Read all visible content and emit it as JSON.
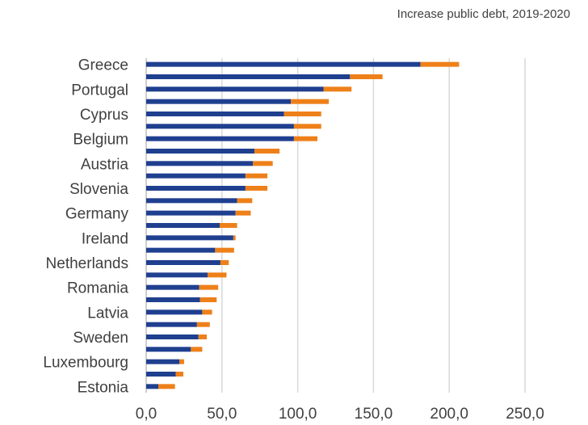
{
  "chart_data": {
    "type": "bar",
    "orientation": "horizontal",
    "stacked": true,
    "title": "Increase public debt, 2019-2020",
    "xlabel": "",
    "ylabel": "",
    "xlim": [
      0,
      250
    ],
    "x_ticks": [
      "0,0",
      "50,0",
      "100,0",
      "150,0",
      "200,0",
      "250,0"
    ],
    "grid": "vertical",
    "legend": "none",
    "categories": [
      "Greece",
      "",
      "Portugal",
      "",
      "Cyprus",
      "",
      "Belgium",
      "",
      "Austria",
      "",
      "Slovenia",
      "",
      "Germany",
      "",
      "Ireland",
      "",
      "Netherlands",
      "",
      "Romania",
      "",
      "Latvia",
      "",
      "Sweden",
      "",
      "Luxembourg",
      "",
      "Estonia"
    ],
    "series": [
      {
        "color": "#1f3f8f",
        "values": [
          181,
          134.5,
          117,
          95.5,
          91,
          97.5,
          97.5,
          71.5,
          70.5,
          65.5,
          65.5,
          60,
          59,
          48.5,
          57.5,
          45.5,
          49,
          40.5,
          35,
          35.5,
          37,
          33.5,
          34.5,
          29.5,
          22,
          19.5,
          8
        ]
      },
      {
        "color": "#ee8019",
        "values": [
          25.5,
          21.5,
          18.5,
          25,
          24.5,
          18,
          15.5,
          16.5,
          13,
          14.5,
          14.5,
          10,
          10,
          11.5,
          1.5,
          12.5,
          5.5,
          12.5,
          12.5,
          11,
          6.5,
          8.5,
          5.5,
          7.5,
          3,
          5,
          11
        ]
      }
    ]
  },
  "colors": {
    "grid": "#d9d9d9",
    "axis": "#bfbfbf",
    "text": "#404040"
  }
}
